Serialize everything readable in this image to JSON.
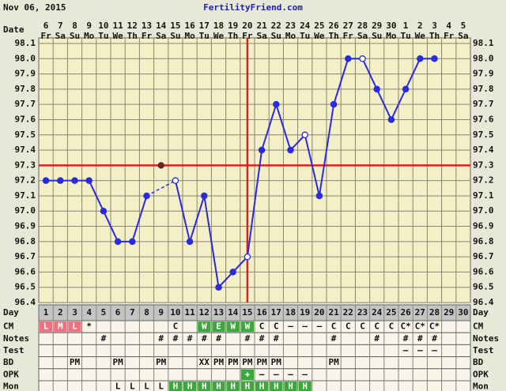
{
  "header": {
    "date": "Nov 06, 2015",
    "site": "FertilityFriend.com"
  },
  "chart_data": {
    "type": "line",
    "date_label": "Date",
    "dates": [
      6,
      7,
      8,
      9,
      10,
      11,
      12,
      13,
      14,
      15,
      16,
      17,
      18,
      19,
      20,
      21,
      22,
      23,
      24,
      25,
      26,
      27,
      28,
      29,
      30,
      1,
      2,
      3,
      4,
      5
    ],
    "weekdays": [
      "Fr",
      "Sa",
      "Su",
      "Mo",
      "Tu",
      "We",
      "Th",
      "Fr",
      "Sa",
      "Su",
      "Mo",
      "Tu",
      "We",
      "Th",
      "Fr",
      "Sa",
      "Su",
      "Mo",
      "Tu",
      "We",
      "Th",
      "Fr",
      "Sa",
      "Su",
      "Mo",
      "Tu",
      "We",
      "Th",
      "Fr",
      "Sa"
    ],
    "temperatures": [
      97.2,
      97.2,
      97.2,
      97.2,
      97.0,
      96.8,
      96.8,
      97.1,
      null,
      97.2,
      96.8,
      97.1,
      96.5,
      96.6,
      96.7,
      97.4,
      97.7,
      97.4,
      97.5,
      97.1,
      97.7,
      98.0,
      98.0,
      97.8,
      97.6,
      97.8,
      98.0,
      98.0,
      null,
      null
    ],
    "hollow": [
      false,
      false,
      false,
      false,
      false,
      false,
      false,
      false,
      false,
      true,
      false,
      false,
      false,
      false,
      true,
      false,
      false,
      false,
      true,
      false,
      false,
      false,
      true,
      false,
      false,
      false,
      false,
      false,
      false,
      false
    ],
    "excluded": [
      null,
      null,
      null,
      null,
      null,
      null,
      null,
      null,
      97.3,
      null,
      null,
      null,
      null,
      null,
      null,
      null,
      null,
      null,
      null,
      null,
      null,
      null,
      null,
      null,
      null,
      null,
      null,
      null,
      null,
      null
    ],
    "line_color": "#2a2ae0",
    "excluded_color": "#7a1e1e",
    "ylim": [
      96.4,
      98.1
    ],
    "yticks": [
      96.4,
      96.5,
      96.6,
      96.7,
      96.8,
      96.9,
      {
        "value": 97.0,
        "label": "97.0"
      },
      97.1,
      97.2,
      97.3,
      97.4,
      97.5,
      97.6,
      97.7,
      97.8,
      97.9,
      {
        "value": 98.0,
        "label": "98.0"
      },
      98.1
    ],
    "grid": true,
    "coverline": 97.3,
    "ovulation_day": 15,
    "marker_line_color": "#e02020"
  },
  "rows": [
    {
      "label": "Day",
      "cells": [
        1,
        2,
        3,
        4,
        5,
        6,
        7,
        8,
        9,
        10,
        11,
        12,
        13,
        14,
        15,
        16,
        17,
        18,
        19,
        20,
        21,
        22,
        23,
        24,
        25,
        26,
        27,
        28,
        29,
        30
      ]
    },
    {
      "label": "CM",
      "cells": [
        "L",
        "M",
        "L",
        "*",
        null,
        null,
        null,
        null,
        null,
        "C",
        null,
        "W",
        "E",
        "W",
        "W",
        "C",
        "C",
        "–",
        "–",
        "–",
        "C",
        "C",
        "C",
        "C",
        "C",
        "C*",
        "C*",
        "C*",
        null,
        null
      ],
      "colors": [
        "#f07080",
        "#f07080",
        "#f07080",
        null,
        null,
        null,
        null,
        null,
        null,
        null,
        null,
        "#3aa83a",
        "#3aa83a",
        "#3aa83a",
        "#3aa83a",
        null,
        null,
        null,
        null,
        null,
        null,
        null,
        null,
        null,
        null,
        null,
        null,
        null,
        null,
        null
      ]
    },
    {
      "label": "Notes",
      "cells": [
        null,
        null,
        null,
        null,
        "#",
        null,
        null,
        null,
        "#",
        "#",
        "#",
        "#",
        "#",
        null,
        "#",
        "#",
        "#",
        null,
        null,
        null,
        "#",
        null,
        null,
        "#",
        null,
        "#",
        "#",
        "#",
        null,
        null
      ]
    },
    {
      "label": "Test",
      "cells": [
        null,
        null,
        null,
        null,
        null,
        null,
        null,
        null,
        null,
        null,
        null,
        null,
        null,
        null,
        null,
        null,
        null,
        null,
        null,
        null,
        null,
        null,
        null,
        null,
        null,
        "–",
        "–",
        "–",
        null,
        null
      ]
    },
    {
      "label": "BD",
      "cells": [
        null,
        null,
        "PM",
        null,
        null,
        "PM",
        null,
        null,
        "PM",
        null,
        null,
        "XX",
        "PM",
        "PM",
        "PM",
        "PM",
        "PM",
        null,
        null,
        null,
        "PM",
        null,
        null,
        null,
        null,
        null,
        null,
        null,
        null,
        null
      ]
    },
    {
      "label": "OPK",
      "cells": [
        null,
        null,
        null,
        null,
        null,
        null,
        null,
        null,
        null,
        null,
        null,
        null,
        null,
        null,
        "+",
        "–",
        "–",
        "–",
        "–",
        null,
        null,
        null,
        null,
        null,
        null,
        null,
        null,
        null,
        null,
        null
      ],
      "colors": [
        null,
        null,
        null,
        null,
        null,
        null,
        null,
        null,
        null,
        null,
        null,
        null,
        null,
        null,
        "#3aa83a",
        null,
        null,
        null,
        null,
        null,
        null,
        null,
        null,
        null,
        null,
        null,
        null,
        null,
        null,
        null
      ]
    },
    {
      "label": "Mon",
      "cells": [
        null,
        null,
        null,
        null,
        null,
        "L",
        "L",
        "L",
        "L",
        "H",
        "H",
        "H",
        "H",
        "H",
        "H",
        "H",
        "H",
        "H",
        "H",
        null,
        null,
        null,
        null,
        null,
        null,
        null,
        null,
        null,
        null,
        null
      ],
      "colors": [
        null,
        null,
        null,
        null,
        null,
        null,
        null,
        null,
        null,
        "#3aa83a",
        "#3aa83a",
        "#3aa83a",
        "#3aa83a",
        "#3aa83a",
        "#3aa83a",
        "#3aa83a",
        "#3aa83a",
        "#3aa83a",
        "#3aa83a",
        null,
        null,
        null,
        null,
        null,
        null,
        null,
        null,
        null,
        null,
        null
      ]
    }
  ]
}
